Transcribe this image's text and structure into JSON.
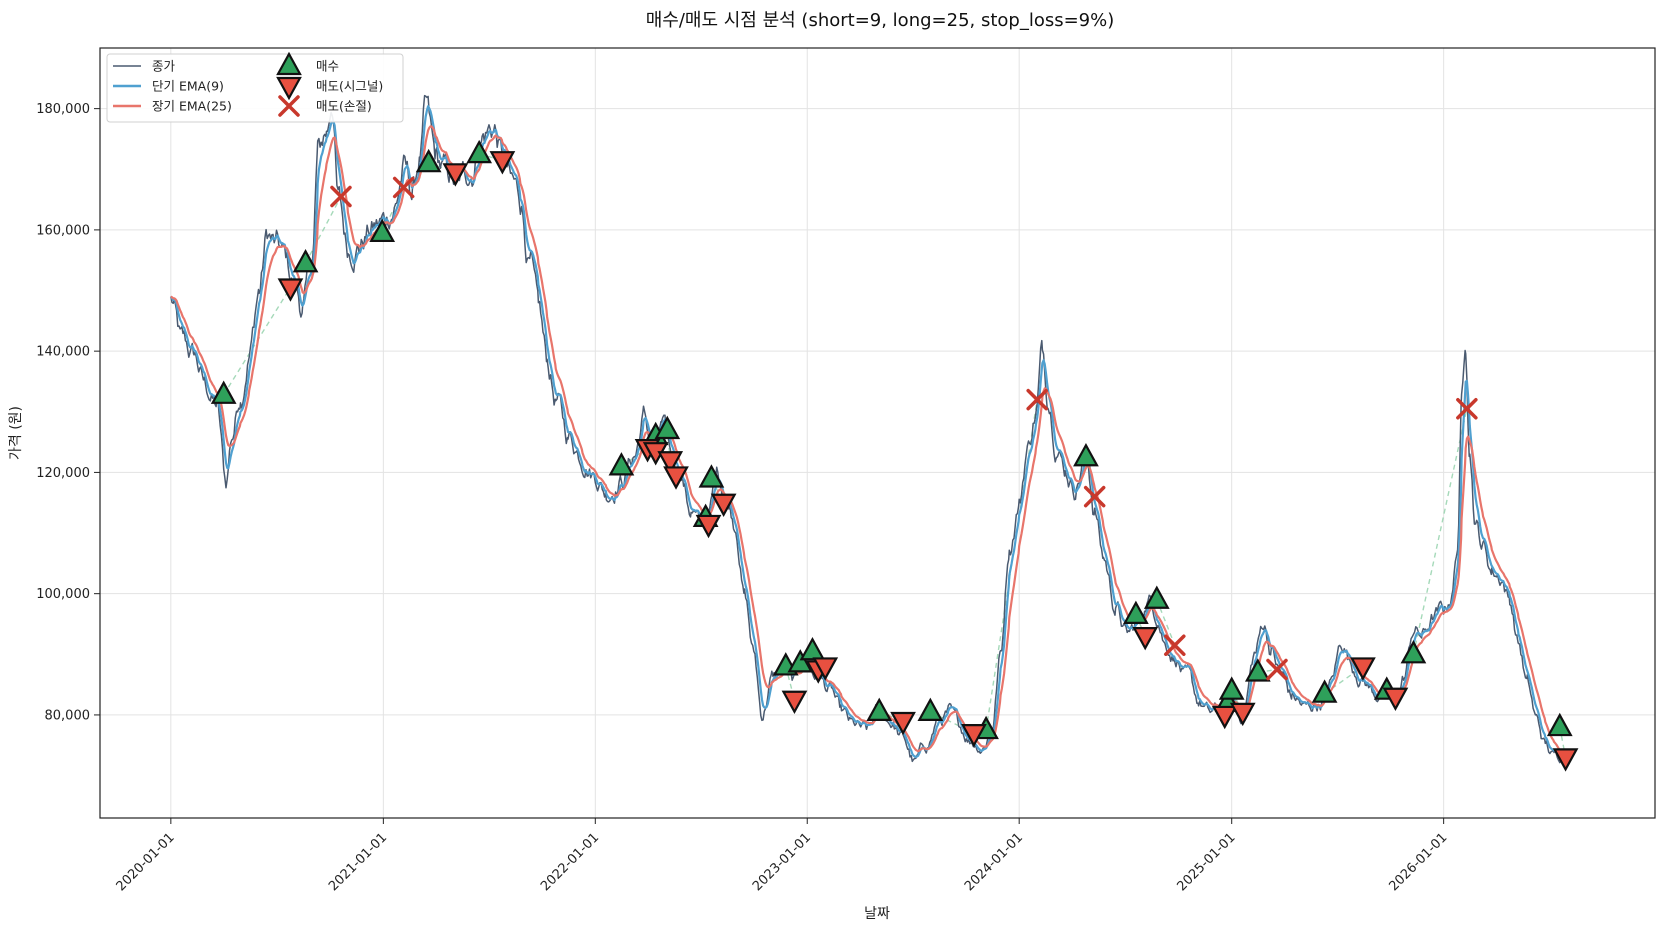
{
  "chart_data": {
    "type": "line",
    "title": "매수/매도 시점 분석 (short=9, long=25, stop_loss=9%)",
    "xlabel": "날짜",
    "ylabel": "가격 (원)",
    "x_ticks": [
      "2020-01-01",
      "2021-01-01",
      "2022-01-01",
      "2023-01-01",
      "2024-01-01",
      "2025-01-01",
      "2026-01-01"
    ],
    "x_range": [
      "2019-09-01",
      "2026-12-31"
    ],
    "ylim": [
      63000,
      190000
    ],
    "y_ticks": [
      80000,
      100000,
      120000,
      140000,
      160000,
      180000
    ],
    "y_tick_labels": [
      "80,000",
      "100,000",
      "120,000",
      "140,000",
      "160,000",
      "180,000"
    ],
    "grid": true,
    "legend_position": "top-left",
    "colors": {
      "close": "#4a5a70",
      "short_ema": "#4fa0d0",
      "long_ema": "#e8756b",
      "buy": "#2ea05a",
      "sell_signal": "#e85040",
      "sell_stop": "#c8382c",
      "trade_link": "#8fd0a8"
    },
    "legend": [
      {
        "key": "close",
        "label": "종가"
      },
      {
        "key": "short_ema",
        "label": "단기 EMA(9)"
      },
      {
        "key": "long_ema",
        "label": "장기 EMA(25)"
      },
      {
        "key": "buy",
        "label": "매수"
      },
      {
        "key": "sell_signal",
        "label": "매도(시그널)"
      },
      {
        "key": "sell_stop",
        "label": "매도(손절)"
      }
    ],
    "price_series": [
      [
        "2020-01-01",
        148500
      ],
      [
        "2020-01-20",
        141000
      ],
      [
        "2020-02-10",
        139000
      ],
      [
        "2020-03-01",
        134000
      ],
      [
        "2020-03-20",
        131000
      ],
      [
        "2020-04-05",
        118000
      ],
      [
        "2020-04-15",
        126000
      ],
      [
        "2020-04-30",
        133000
      ],
      [
        "2020-05-15",
        140000
      ],
      [
        "2020-06-01",
        150000
      ],
      [
        "2020-06-15",
        159000
      ],
      [
        "2020-07-01",
        157000
      ],
      [
        "2020-07-15",
        155000
      ],
      [
        "2020-07-31",
        151000
      ],
      [
        "2020-08-15",
        147000
      ],
      [
        "2020-09-01",
        155000
      ],
      [
        "2020-09-10",
        172000
      ],
      [
        "2020-09-25",
        176000
      ],
      [
        "2020-10-05",
        182000
      ],
      [
        "2020-10-15",
        165000
      ],
      [
        "2020-11-01",
        157000
      ],
      [
        "2020-11-20",
        158000
      ],
      [
        "2020-12-10",
        160000
      ],
      [
        "2021-01-01",
        161000
      ],
      [
        "2021-01-20",
        164000
      ],
      [
        "2021-02-05",
        170000
      ],
      [
        "2021-02-20",
        166000
      ],
      [
        "2021-03-05",
        172000
      ],
      [
        "2021-03-15",
        179000
      ],
      [
        "2021-04-01",
        171000
      ],
      [
        "2021-04-20",
        169000
      ],
      [
        "2021-05-10",
        167000
      ],
      [
        "2021-06-01",
        170000
      ],
      [
        "2021-06-20",
        176000
      ],
      [
        "2021-07-10",
        177000
      ],
      [
        "2021-07-25",
        172000
      ],
      [
        "2021-08-10",
        167000
      ],
      [
        "2021-08-25",
        165000
      ],
      [
        "2021-09-10",
        155000
      ],
      [
        "2021-09-25",
        146000
      ],
      [
        "2021-10-10",
        138000
      ],
      [
        "2021-10-25",
        132000
      ],
      [
        "2021-11-15",
        126000
      ],
      [
        "2021-12-10",
        123000
      ],
      [
        "2022-01-01",
        120000
      ],
      [
        "2022-01-20",
        117000
      ],
      [
        "2022-02-15",
        119000
      ],
      [
        "2022-03-10",
        123000
      ],
      [
        "2022-03-25",
        129000
      ],
      [
        "2022-04-10",
        124000
      ],
      [
        "2022-04-25",
        127000
      ],
      [
        "2022-05-10",
        123000
      ],
      [
        "2022-05-25",
        121000
      ],
      [
        "2022-06-15",
        114000
      ],
      [
        "2022-07-01",
        111000
      ],
      [
        "2022-07-15",
        113000
      ],
      [
        "2022-07-31",
        120000
      ],
      [
        "2022-08-15",
        116000
      ],
      [
        "2022-08-31",
        112000
      ],
      [
        "2022-09-15",
        100000
      ],
      [
        "2022-10-01",
        90000
      ],
      [
        "2022-10-15",
        80000
      ],
      [
        "2022-11-01",
        86000
      ],
      [
        "2022-11-20",
        87000
      ],
      [
        "2022-12-10",
        85000
      ],
      [
        "2022-12-25",
        89000
      ],
      [
        "2023-01-15",
        87000
      ],
      [
        "2023-02-10",
        84000
      ],
      [
        "2023-03-01",
        80000
      ],
      [
        "2023-03-20",
        78000
      ],
      [
        "2023-04-15",
        77000
      ],
      [
        "2023-05-05",
        81000
      ],
      [
        "2023-05-25",
        79000
      ],
      [
        "2023-06-15",
        76000
      ],
      [
        "2023-07-05",
        72000
      ],
      [
        "2023-07-25",
        75000
      ],
      [
        "2023-08-15",
        79000
      ],
      [
        "2023-09-01",
        80000
      ],
      [
        "2023-09-20",
        78000
      ],
      [
        "2023-10-10",
        76000
      ],
      [
        "2023-10-30",
        75000
      ],
      [
        "2023-11-15",
        78000
      ],
      [
        "2023-11-30",
        90000
      ],
      [
        "2023-12-15",
        108000
      ],
      [
        "2024-01-01",
        115000
      ],
      [
        "2024-01-15",
        124000
      ],
      [
        "2024-01-30",
        130000
      ],
      [
        "2024-02-10",
        140000
      ],
      [
        "2024-02-20",
        133000
      ],
      [
        "2024-03-05",
        126000
      ],
      [
        "2024-03-20",
        121000
      ],
      [
        "2024-04-05",
        118000
      ],
      [
        "2024-04-25",
        123000
      ],
      [
        "2024-05-10",
        114000
      ],
      [
        "2024-05-25",
        106000
      ],
      [
        "2024-06-15",
        98000
      ],
      [
        "2024-07-05",
        93000
      ],
      [
        "2024-07-25",
        95000
      ],
      [
        "2024-08-10",
        99000
      ],
      [
        "2024-08-25",
        97000
      ],
      [
        "2024-09-10",
        92000
      ],
      [
        "2024-09-25",
        90000
      ],
      [
        "2024-10-15",
        86000
      ],
      [
        "2024-11-05",
        82000
      ],
      [
        "2024-11-25",
        80000
      ],
      [
        "2024-12-15",
        81000
      ],
      [
        "2025-01-01",
        82000
      ],
      [
        "2025-01-20",
        80000
      ],
      [
        "2025-02-10",
        90000
      ],
      [
        "2025-02-25",
        95000
      ],
      [
        "2025-03-10",
        91000
      ],
      [
        "2025-03-25",
        87000
      ],
      [
        "2025-04-15",
        83000
      ],
      [
        "2025-05-10",
        81000
      ],
      [
        "2025-06-01",
        82000
      ],
      [
        "2025-06-20",
        85000
      ],
      [
        "2025-07-10",
        92000
      ],
      [
        "2025-07-30",
        88000
      ],
      [
        "2025-08-15",
        86000
      ],
      [
        "2025-09-01",
        84000
      ],
      [
        "2025-09-20",
        83000
      ],
      [
        "2025-10-10",
        82000
      ],
      [
        "2025-10-25",
        86000
      ],
      [
        "2025-11-10",
        94000
      ],
      [
        "2025-11-25",
        93000
      ],
      [
        "2025-12-15",
        96000
      ],
      [
        "2026-01-01",
        97000
      ],
      [
        "2026-01-15",
        100000
      ],
      [
        "2026-01-25",
        108000
      ],
      [
        "2026-02-01",
        131000
      ],
      [
        "2026-02-08",
        142000
      ],
      [
        "2026-02-15",
        125000
      ],
      [
        "2026-02-25",
        112000
      ],
      [
        "2026-03-10",
        108000
      ],
      [
        "2026-03-25",
        104000
      ],
      [
        "2026-04-10",
        103000
      ],
      [
        "2026-04-25",
        99000
      ],
      [
        "2026-05-10",
        92000
      ],
      [
        "2026-05-25",
        85000
      ],
      [
        "2026-06-10",
        79000
      ],
      [
        "2026-06-25",
        75000
      ],
      [
        "2026-07-10",
        73000
      ],
      [
        "2026-07-25",
        74000
      ],
      [
        "2026-08-10",
        74000
      ]
    ],
    "buy_points": [
      [
        "2020-04-01",
        132800
      ],
      [
        "2020-08-20",
        154500
      ],
      [
        "2020-12-30",
        159500
      ],
      [
        "2021-03-20",
        171000
      ],
      [
        "2021-06-15",
        172500
      ],
      [
        "2022-02-15",
        121000
      ],
      [
        "2022-04-15",
        126000
      ],
      [
        "2022-05-05",
        127000
      ],
      [
        "2022-07-10",
        112500
      ],
      [
        "2022-07-20",
        119000
      ],
      [
        "2022-11-25",
        88000
      ],
      [
        "2022-12-20",
        88500
      ],
      [
        "2023-01-10",
        90500
      ],
      [
        "2023-05-05",
        80500
      ],
      [
        "2023-08-01",
        80500
      ],
      [
        "2023-11-05",
        77500
      ],
      [
        "2024-04-25",
        122500
      ],
      [
        "2024-07-20",
        96500
      ],
      [
        "2024-08-25",
        99000
      ],
      [
        "2024-12-25",
        82000
      ],
      [
        "2025-01-01",
        84000
      ],
      [
        "2025-02-15",
        87000
      ],
      [
        "2025-06-10",
        83500
      ],
      [
        "2025-09-25",
        84000
      ],
      [
        "2025-11-10",
        90000
      ],
      [
        "2026-07-20",
        78000
      ]
    ],
    "sell_signal_points": [
      [
        "2020-07-25",
        150500
      ],
      [
        "2021-05-05",
        169500
      ],
      [
        "2021-07-25",
        171500
      ],
      [
        "2022-04-01",
        124000
      ],
      [
        "2022-04-15",
        123500
      ],
      [
        "2022-05-10",
        122000
      ],
      [
        "2022-05-20",
        119500
      ],
      [
        "2022-07-15",
        111500
      ],
      [
        "2022-08-10",
        115000
      ],
      [
        "2022-12-10",
        82500
      ],
      [
        "2023-01-20",
        87500
      ],
      [
        "2023-02-01",
        88000
      ],
      [
        "2023-06-15",
        79000
      ],
      [
        "2023-10-15",
        77000
      ],
      [
        "2024-08-05",
        93000
      ],
      [
        "2024-12-20",
        80000
      ],
      [
        "2025-01-20",
        80500
      ],
      [
        "2025-08-15",
        88000
      ],
      [
        "2025-10-10",
        83000
      ],
      [
        "2026-07-30",
        73000
      ]
    ],
    "sell_stop_points": [
      [
        "2020-10-20",
        165500
      ],
      [
        "2021-02-05",
        167000
      ],
      [
        "2024-02-01",
        132000
      ],
      [
        "2024-05-10",
        116000
      ],
      [
        "2024-09-25",
        91500
      ],
      [
        "2025-03-20",
        87500
      ],
      [
        "2026-02-10",
        130500
      ]
    ]
  }
}
